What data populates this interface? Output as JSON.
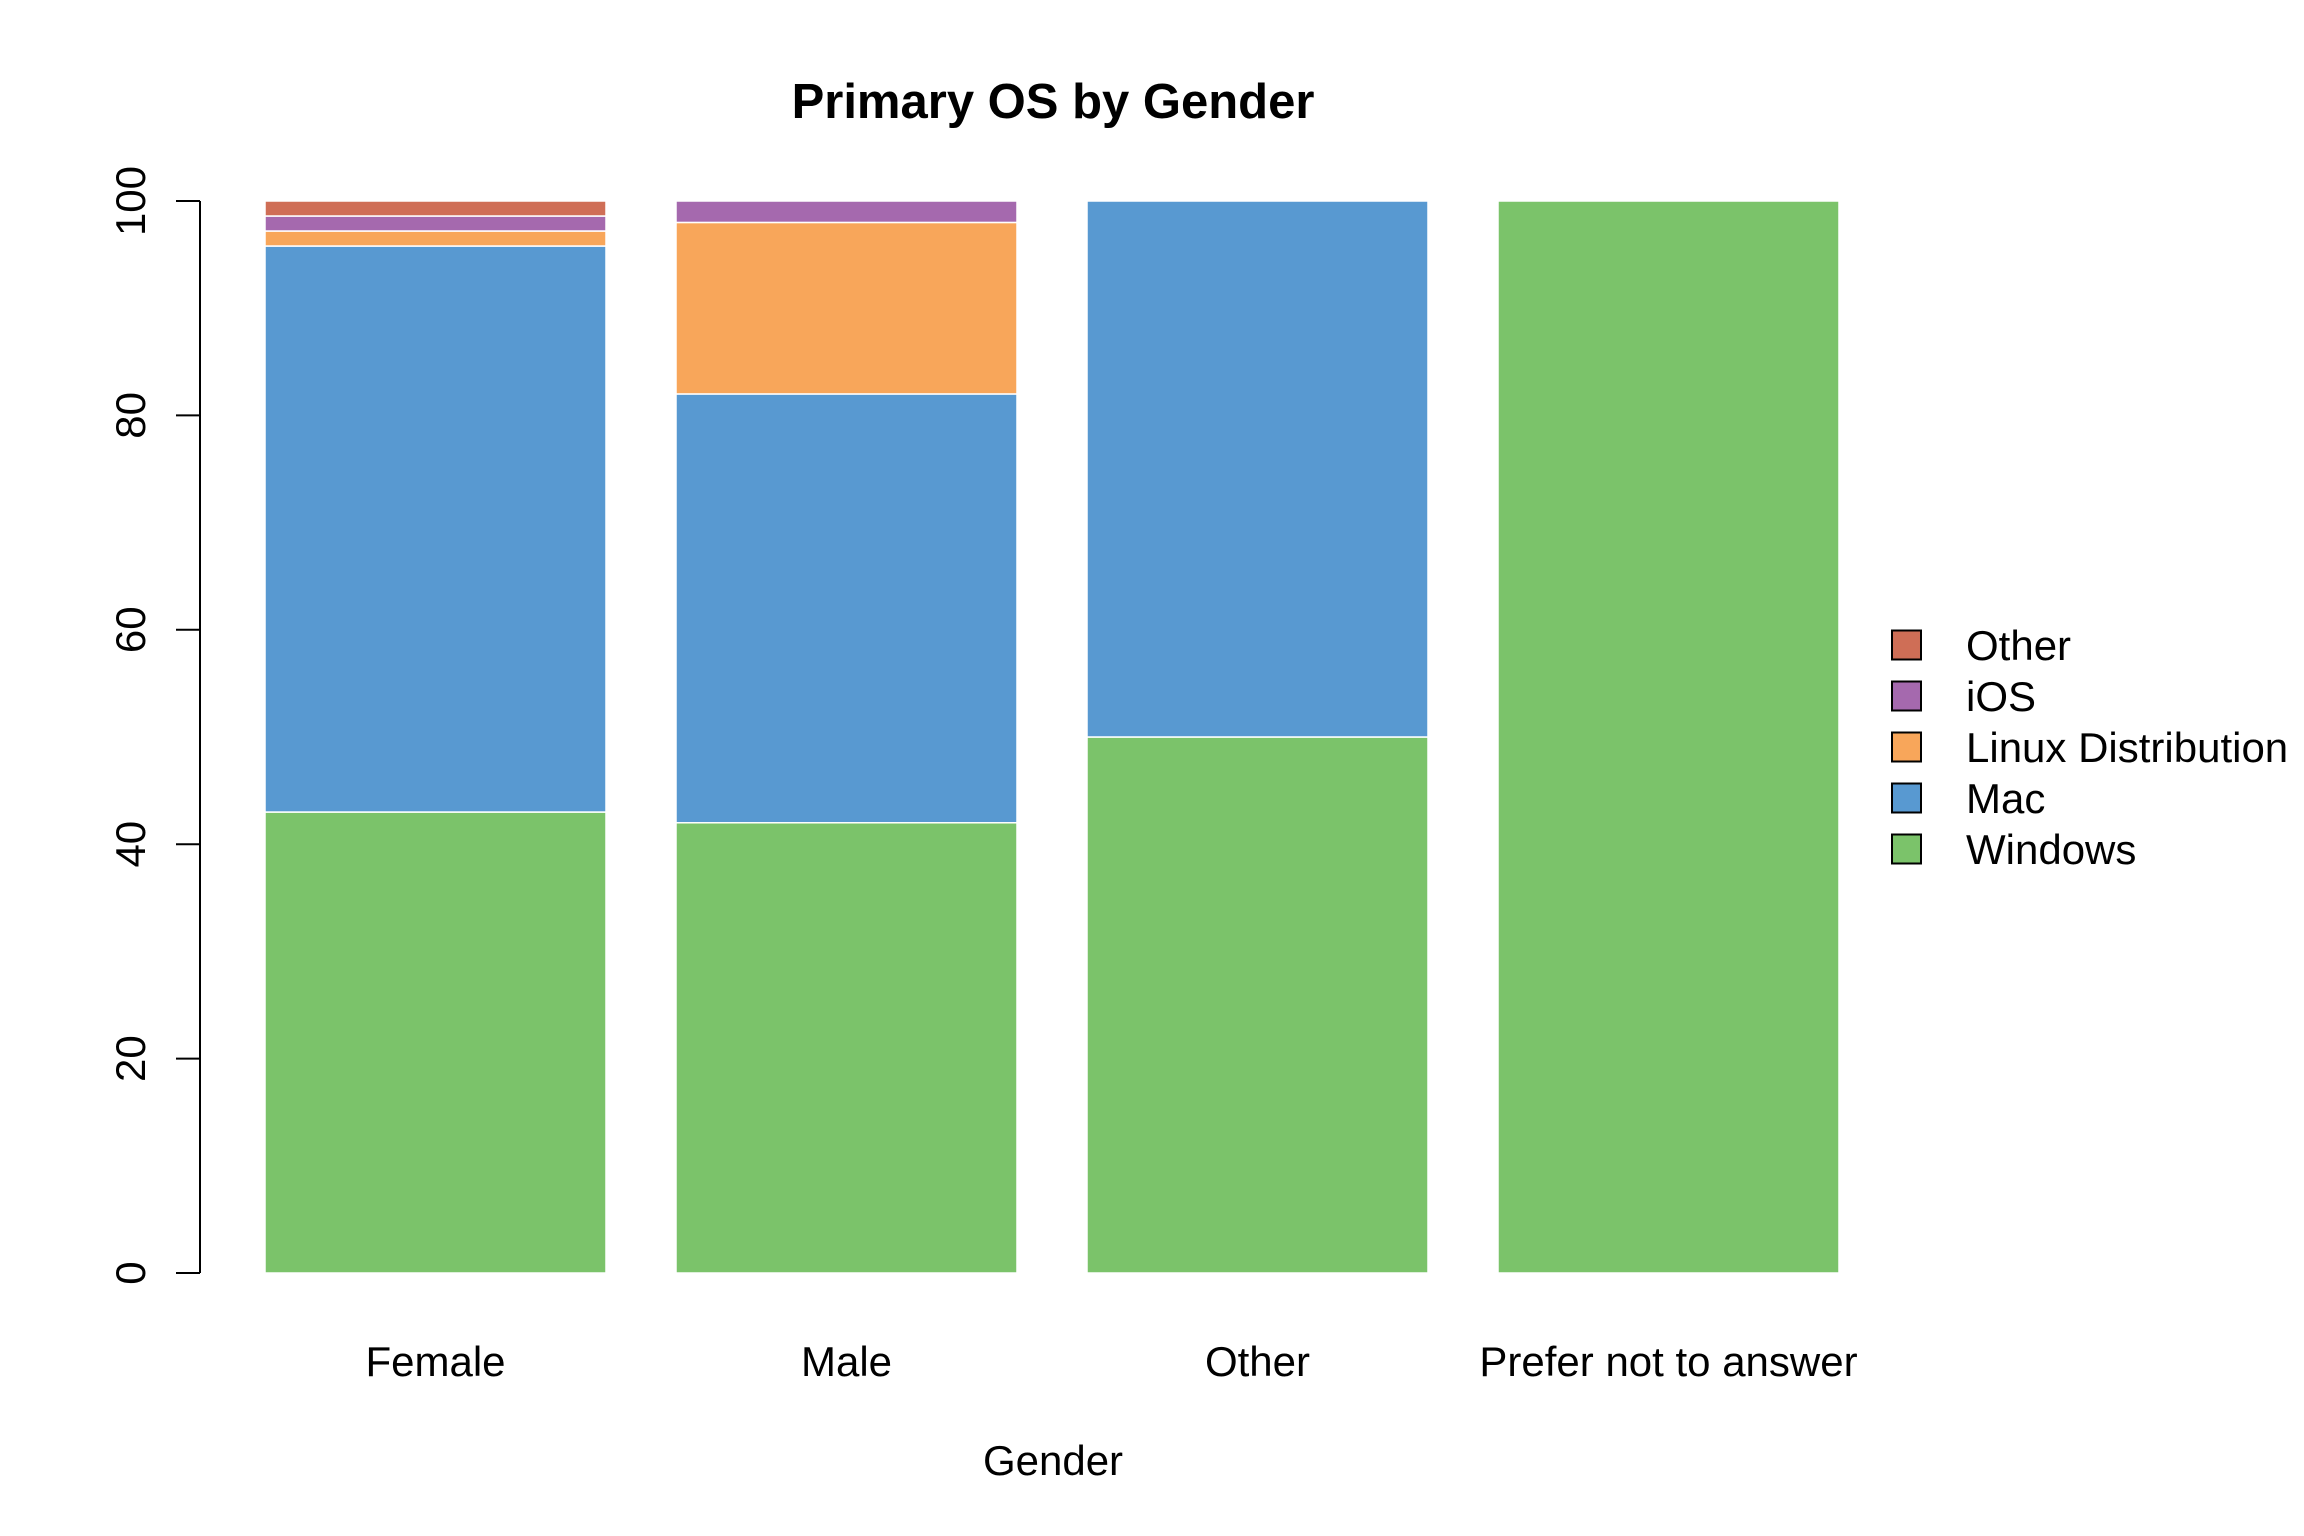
{
  "chart_data": {
    "type": "bar",
    "stacked": true,
    "title": "Primary OS by Gender",
    "xlabel": "Gender",
    "ylabel": "",
    "ylim": [
      0,
      100
    ],
    "yticks": [
      "0",
      "20",
      "40",
      "60",
      "80",
      "100"
    ],
    "categories": [
      "Female",
      "Male",
      "Other",
      "Prefer not to answer"
    ],
    "series": [
      {
        "name": "Windows",
        "color": "#7BC36A",
        "values": [
          43,
          42,
          50,
          100
        ]
      },
      {
        "name": "Mac",
        "color": "#5899D1",
        "values": [
          52.8,
          40,
          50,
          0
        ]
      },
      {
        "name": "Linux Distribution",
        "color": "#F8A65A",
        "values": [
          1.4,
          16,
          0,
          0
        ]
      },
      {
        "name": "iOS",
        "color": "#A569AE",
        "values": [
          1.4,
          2,
          0,
          0
        ]
      },
      {
        "name": "Other",
        "color": "#CF6E56",
        "values": [
          1.4,
          0,
          0,
          0
        ]
      }
    ],
    "legend": {
      "placement": "right",
      "order": [
        "Other",
        "iOS",
        "Linux Distribution",
        "Mac",
        "Windows"
      ]
    },
    "grid": false
  }
}
